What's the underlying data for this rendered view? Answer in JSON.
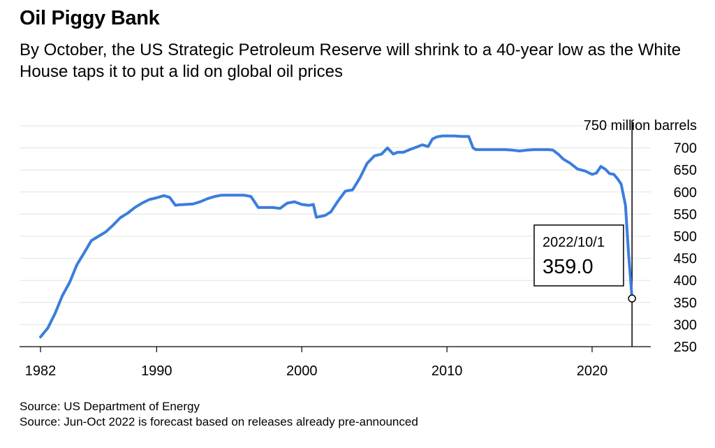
{
  "header": {
    "title": "Oil Piggy Bank",
    "subtitle": "By October, the US Strategic Petroleum Reserve will shrink to a 40-year low as the White House taps it to put a lid on global oil prices"
  },
  "footer": {
    "source_1": "Source: US Department of Energy",
    "source_2": "Source: Jun-Oct 2022 is forecast based on releases already pre-announced"
  },
  "chart_data": {
    "type": "line",
    "title": "Oil Piggy Bank",
    "ylabel": "750 million barrels",
    "xlim": [
      1982,
      2023
    ],
    "ylim": [
      250,
      750
    ],
    "x_ticks": [
      "1982",
      "1990",
      "2000",
      "2010",
      "2020"
    ],
    "y_ticks": [
      "700",
      "650",
      "600",
      "550",
      "500",
      "450",
      "400",
      "350",
      "300",
      "250"
    ],
    "grid": true,
    "line_color": "#3b7ddd",
    "series": [
      {
        "x": [
          1982.0,
          1982.5,
          1983.0,
          1983.5,
          1984.0,
          1984.5,
          1985.0,
          1985.5,
          1986.0,
          1986.5,
          1987.0,
          1987.5,
          1988.0,
          1988.5,
          1989.0,
          1989.5,
          1990.0,
          1990.5,
          1990.9,
          1991.3,
          1991.5,
          1992.0,
          1992.5,
          1993.0,
          1993.5,
          1994.0,
          1994.5,
          1995.0,
          1995.5,
          1996.0,
          1996.5,
          1997.0,
          1997.5,
          1998.0,
          1998.5,
          1999.0,
          1999.5,
          2000.0,
          2000.5,
          2000.8,
          2001.0,
          2001.3,
          2001.6,
          2002.0,
          2002.5,
          2003.0,
          2003.5,
          2004.0,
          2004.5,
          2005.0,
          2005.5,
          2005.9,
          2006.3,
          2006.6,
          2007.0,
          2007.5,
          2008.0,
          2008.3,
          2008.7,
          2009.0,
          2009.3,
          2009.7,
          2010.0,
          2010.5,
          2011.0,
          2011.5,
          2011.8,
          2012.0,
          2013.0,
          2014.0,
          2014.5,
          2015.0,
          2015.5,
          2016.0,
          2016.5,
          2017.0,
          2017.3,
          2017.7,
          2018.0,
          2018.5,
          2019.0,
          2019.5,
          2020.0,
          2020.3,
          2020.6,
          2020.9,
          2021.2,
          2021.5,
          2021.8,
          2022.0,
          2022.3,
          2022.5,
          2022.75
        ],
        "values": [
          272,
          292,
          325,
          365,
          395,
          435,
          462,
          490,
          500,
          510,
          525,
          542,
          552,
          565,
          575,
          583,
          587,
          592,
          588,
          570,
          571,
          572,
          573,
          578,
          585,
          590,
          593,
          593,
          593,
          593,
          590,
          565,
          565,
          565,
          563,
          575,
          578,
          572,
          570,
          572,
          543,
          545,
          547,
          555,
          580,
          602,
          605,
          632,
          665,
          682,
          686,
          700,
          686,
          690,
          690,
          697,
          703,
          707,
          703,
          720,
          725,
          727,
          727,
          727,
          726,
          726,
          700,
          696,
          696,
          696,
          695,
          693,
          695,
          696,
          696,
          696,
          695,
          685,
          675,
          665,
          652,
          648,
          640,
          643,
          658,
          652,
          642,
          640,
          628,
          618,
          570,
          465,
          359
        ]
      }
    ],
    "annotation": {
      "date": "2022/10/1",
      "value": "359.0"
    }
  }
}
